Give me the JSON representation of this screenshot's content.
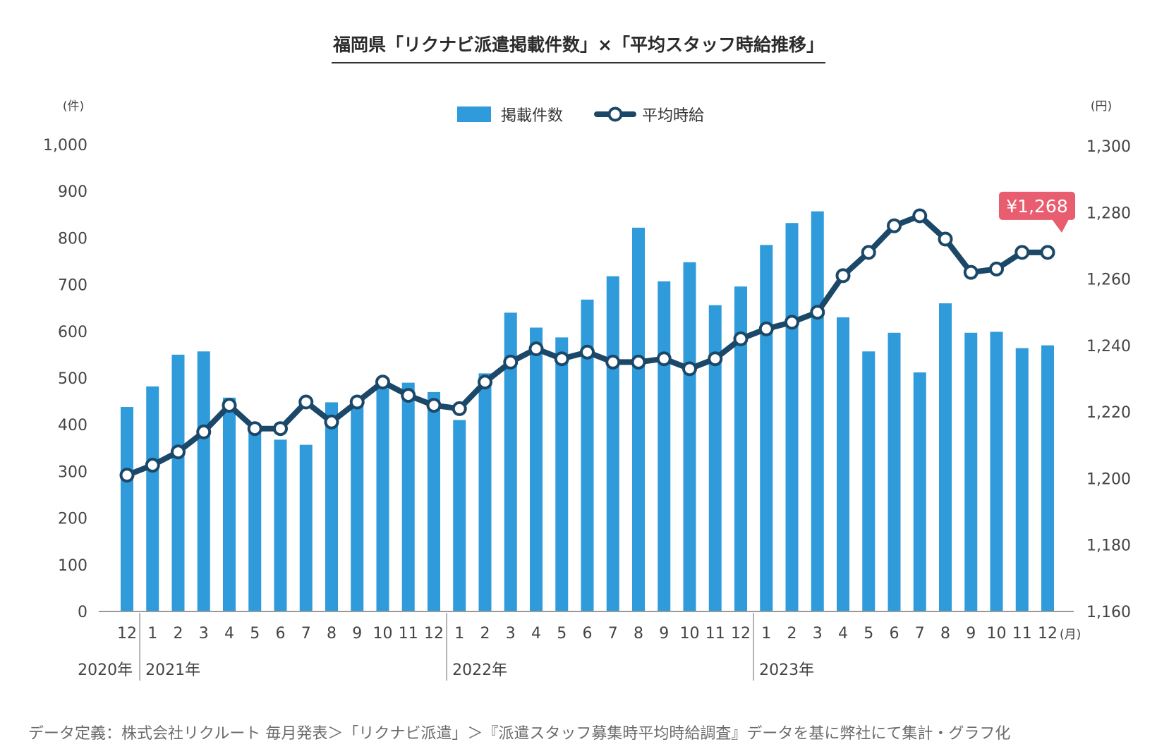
{
  "title": "福岡県「リクナビ派遣掲載件数」×「平均スタッフ時給推移」",
  "footnote": "データ定義：株式会社リクルート 毎月発表＞「リクナビ派遣」＞『派遣スタッフ募集時平均時給調査』データを基に弊社にて集計・グラフ化",
  "colors": {
    "bar": "#2f9bdb",
    "line": "#1b4868",
    "callout": "#e85d70",
    "axis": "#999999"
  },
  "chart_data": {
    "type": "bar+line",
    "categories": [
      "12",
      "1",
      "2",
      "3",
      "4",
      "5",
      "6",
      "7",
      "8",
      "9",
      "10",
      "11",
      "12",
      "1",
      "2",
      "3",
      "4",
      "5",
      "6",
      "7",
      "8",
      "9",
      "10",
      "11",
      "12",
      "1",
      "2",
      "3",
      "4",
      "5",
      "6",
      "7",
      "8",
      "9",
      "10",
      "11",
      "12"
    ],
    "x_unit": "(月)",
    "years": [
      {
        "label": "2020年",
        "start": 0
      },
      {
        "label": "2021年",
        "start": 1
      },
      {
        "label": "2022年",
        "start": 13
      },
      {
        "label": "2023年",
        "start": 25
      }
    ],
    "series": [
      {
        "name": "掲載件数",
        "type": "bar",
        "axis": "left",
        "values": [
          438,
          482,
          550,
          557,
          458,
          395,
          368,
          357,
          448,
          450,
          478,
          490,
          470,
          410,
          510,
          640,
          608,
          587,
          668,
          718,
          822,
          707,
          748,
          656,
          696,
          785,
          832,
          857,
          630,
          557,
          597,
          512,
          660,
          597,
          599,
          564,
          570
        ]
      },
      {
        "name": "平均時給",
        "type": "line",
        "axis": "right",
        "values": [
          1201,
          1204,
          1208,
          1214,
          1222,
          1215,
          1215,
          1223,
          1217,
          1223,
          1229,
          1225,
          1222,
          1221,
          1229,
          1235,
          1239,
          1236,
          1238,
          1235,
          1235,
          1236,
          1233,
          1236,
          1242,
          1245,
          1247,
          1250,
          1261,
          1268,
          1276,
          1279,
          1272,
          1262,
          1263,
          1268,
          1268
        ]
      }
    ],
    "left_axis": {
      "unit": "(件)",
      "ylim": [
        0,
        1000
      ],
      "ticks": [
        "0",
        "100",
        "200",
        "300",
        "400",
        "500",
        "600",
        "700",
        "800",
        "900",
        "1,000"
      ]
    },
    "right_axis": {
      "unit": "(円)",
      "ylim": [
        1160,
        1300
      ],
      "ticks": [
        "1,160",
        "1,180",
        "1,200",
        "1,220",
        "1,240",
        "1,260",
        "1,280",
        "1,300"
      ]
    },
    "callout": {
      "text": "¥1,268",
      "index": 36
    },
    "legend": {
      "position": "top-center"
    }
  }
}
